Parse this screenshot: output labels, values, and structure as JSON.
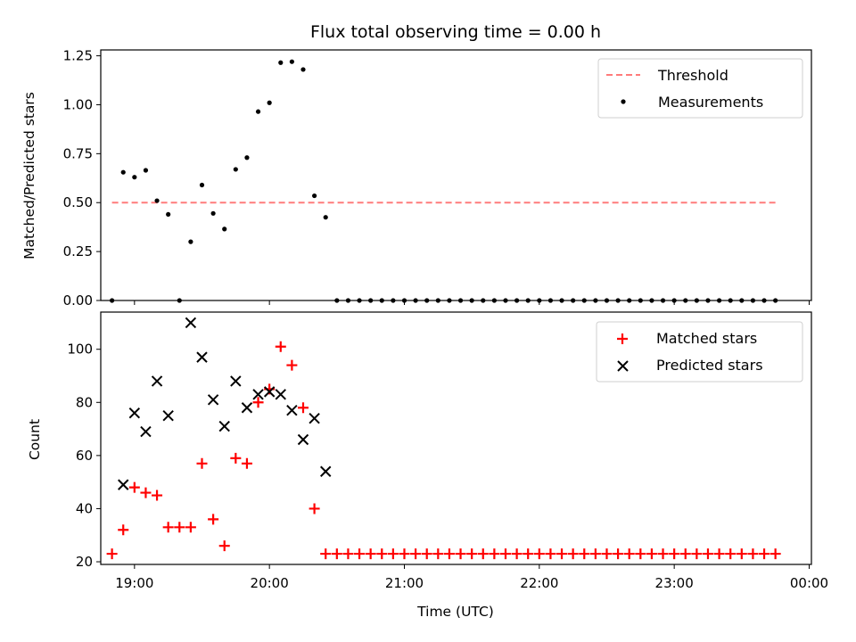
{
  "figure": {
    "title": "Flux total observing time = 0.00 h"
  },
  "chart_data": [
    {
      "type": "scatter",
      "ylabel": "Matched/Predicted stars",
      "xlabel": "",
      "xlim": [
        "18:45",
        "00:01"
      ],
      "ylim": [
        0,
        1.28
      ],
      "yticks": [
        "0.00",
        "0.25",
        "0.50",
        "0.75",
        "1.00",
        "1.25"
      ],
      "ytick_values": [
        0,
        0.25,
        0.5,
        0.75,
        1.0,
        1.25
      ],
      "legend_placement": "upper right",
      "threshold": {
        "name": "Threshold",
        "value": 0.5,
        "x_start": "18:50",
        "x_end": "23:45",
        "color": "#ff7b7b",
        "style": "dashed"
      },
      "series": [
        {
          "name": "Measurements",
          "color": "#000000",
          "marker": "dot",
          "x": [
            "18:50",
            "18:55",
            "19:00",
            "19:05",
            "19:10",
            "19:15",
            "19:20",
            "19:25",
            "19:30",
            "19:35",
            "19:40",
            "19:45",
            "19:50",
            "19:55",
            "20:00",
            "20:05",
            "20:10",
            "20:15",
            "20:20",
            "20:25",
            "20:30",
            "20:35",
            "20:40",
            "20:45",
            "20:50",
            "20:55",
            "21:00",
            "21:05",
            "21:10",
            "21:15",
            "21:20",
            "21:25",
            "21:30",
            "21:35",
            "21:40",
            "21:45",
            "21:50",
            "21:55",
            "22:00",
            "22:05",
            "22:10",
            "22:15",
            "22:20",
            "22:25",
            "22:30",
            "22:35",
            "22:40",
            "22:45",
            "22:50",
            "22:55",
            "23:00",
            "23:05",
            "23:10",
            "23:15",
            "23:20",
            "23:25",
            "23:30",
            "23:35",
            "23:40",
            "23:45"
          ],
          "y": [
            0,
            0.655,
            0.63,
            0.665,
            0.51,
            0.44,
            0,
            0.3,
            0.59,
            0.445,
            0.365,
            0.67,
            0.73,
            0.965,
            1.01,
            1.215,
            1.22,
            1.18,
            0.535,
            0.425,
            0,
            0,
            0,
            0,
            0,
            0,
            0,
            0,
            0,
            0,
            0,
            0,
            0,
            0,
            0,
            0,
            0,
            0,
            0,
            0,
            0,
            0,
            0,
            0,
            0,
            0,
            0,
            0,
            0,
            0,
            0,
            0,
            0,
            0,
            0,
            0,
            0,
            0,
            0,
            0
          ]
        }
      ]
    },
    {
      "type": "scatter",
      "ylabel": "Count",
      "xlabel": "Time (UTC)",
      "xlim": [
        "18:45",
        "00:01"
      ],
      "ylim": [
        19,
        114
      ],
      "yticks": [
        "20",
        "40",
        "60",
        "80",
        "100"
      ],
      "ytick_values": [
        20,
        40,
        60,
        80,
        100
      ],
      "xticks": [
        "19:00",
        "20:00",
        "21:00",
        "22:00",
        "23:00",
        "00:00"
      ],
      "legend_placement": "upper right",
      "series": [
        {
          "name": "Matched stars",
          "color": "#ff0000",
          "marker": "plus",
          "x": [
            "18:50",
            "18:55",
            "19:00",
            "19:05",
            "19:10",
            "19:15",
            "19:20",
            "19:25",
            "19:30",
            "19:35",
            "19:40",
            "19:45",
            "19:50",
            "19:55",
            "20:00",
            "20:05",
            "20:10",
            "20:15",
            "20:20",
            "20:25",
            "20:30",
            "20:35",
            "20:40",
            "20:45",
            "20:50",
            "20:55",
            "21:00",
            "21:05",
            "21:10",
            "21:15",
            "21:20",
            "21:25",
            "21:30",
            "21:35",
            "21:40",
            "21:45",
            "21:50",
            "21:55",
            "22:00",
            "22:05",
            "22:10",
            "22:15",
            "22:20",
            "22:25",
            "22:30",
            "22:35",
            "22:40",
            "22:45",
            "22:50",
            "22:55",
            "23:00",
            "23:05",
            "23:10",
            "23:15",
            "23:20",
            "23:25",
            "23:30",
            "23:35",
            "23:40",
            "23:45"
          ],
          "y": [
            23,
            32,
            48,
            46,
            45,
            33,
            33,
            33,
            57,
            36,
            26,
            59,
            57,
            80,
            85,
            101,
            94,
            78,
            40,
            23,
            23,
            23,
            23,
            23,
            23,
            23,
            23,
            23,
            23,
            23,
            23,
            23,
            23,
            23,
            23,
            23,
            23,
            23,
            23,
            23,
            23,
            23,
            23,
            23,
            23,
            23,
            23,
            23,
            23,
            23,
            23,
            23,
            23,
            23,
            23,
            23,
            23,
            23,
            23,
            23
          ]
        },
        {
          "name": "Predicted stars",
          "color": "#000000",
          "marker": "x",
          "x": [
            "18:55",
            "19:00",
            "19:05",
            "19:10",
            "19:15",
            "19:25",
            "19:30",
            "19:35",
            "19:40",
            "19:45",
            "19:50",
            "19:55",
            "20:00",
            "20:05",
            "20:10",
            "20:15",
            "20:20",
            "20:25"
          ],
          "y": [
            49,
            76,
            69,
            88,
            75,
            110,
            97,
            81,
            71,
            88,
            78,
            83,
            84,
            83,
            77,
            66,
            74,
            54
          ]
        }
      ]
    }
  ]
}
